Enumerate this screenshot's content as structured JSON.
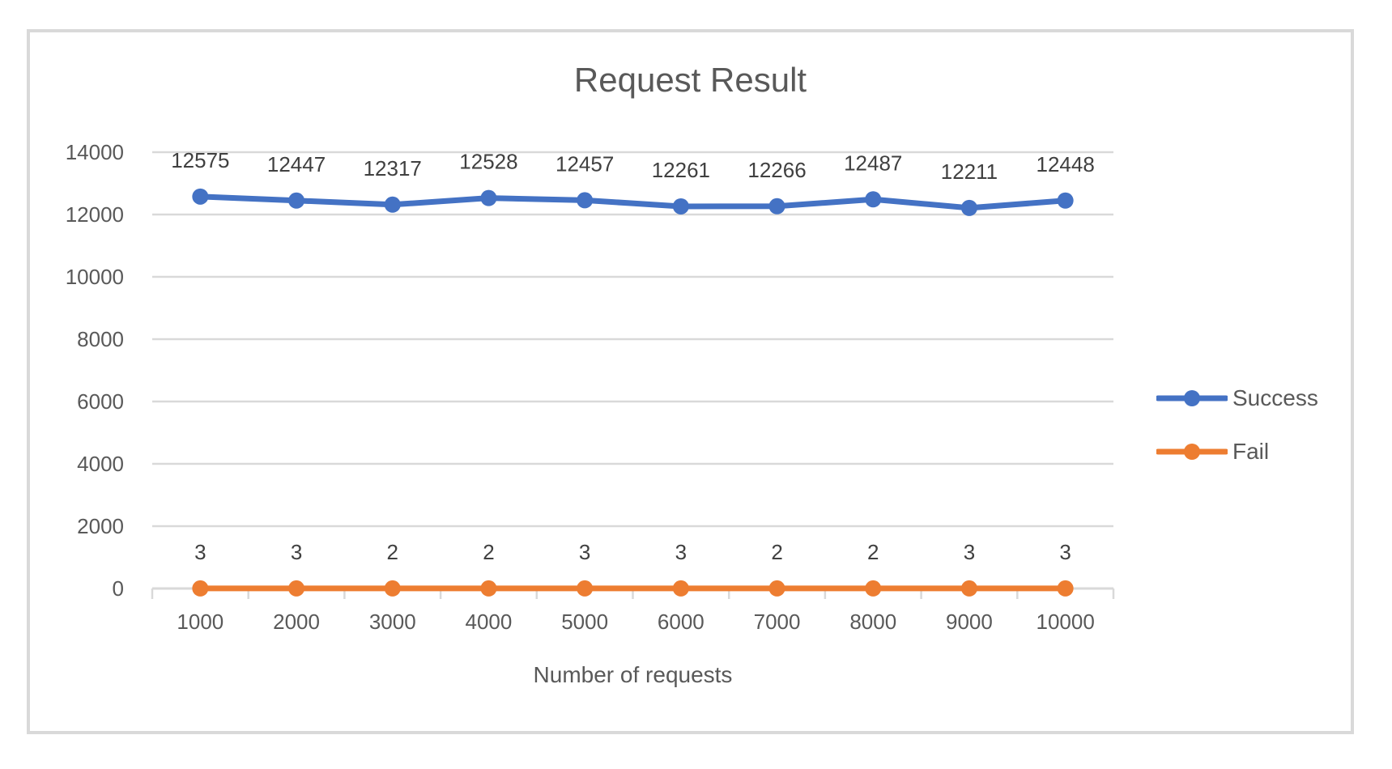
{
  "chart_data": {
    "type": "line",
    "title": "Request Result",
    "xlabel": "Number of requests",
    "ylabel": "",
    "categories": [
      1000,
      2000,
      3000,
      4000,
      5000,
      6000,
      7000,
      8000,
      9000,
      10000
    ],
    "series": [
      {
        "name": "Success",
        "color": "#4472C4",
        "values": [
          12575,
          12447,
          12317,
          12528,
          12457,
          12261,
          12266,
          12487,
          12211,
          12448
        ],
        "data_labels": [
          12575,
          12447,
          12317,
          12528,
          12457,
          12261,
          12266,
          12487,
          12211,
          12448
        ]
      },
      {
        "name": "Fail",
        "color": "#ED7D31",
        "values": [
          3,
          3,
          2,
          2,
          3,
          3,
          2,
          2,
          3,
          3
        ],
        "data_labels": [
          3,
          3,
          2,
          2,
          3,
          3,
          2,
          2,
          3,
          3
        ]
      }
    ],
    "ylim": [
      0,
      14000
    ],
    "ytick_step": 2000,
    "yticks": [
      0,
      2000,
      4000,
      6000,
      8000,
      10000,
      12000,
      14000
    ],
    "grid": true,
    "data_labels_shown": true,
    "legend_position": "right",
    "grid_color": "#D9D9D9",
    "axis_text_color": "#595959",
    "data_label_color": "#404040",
    "title_color": "#595959"
  }
}
